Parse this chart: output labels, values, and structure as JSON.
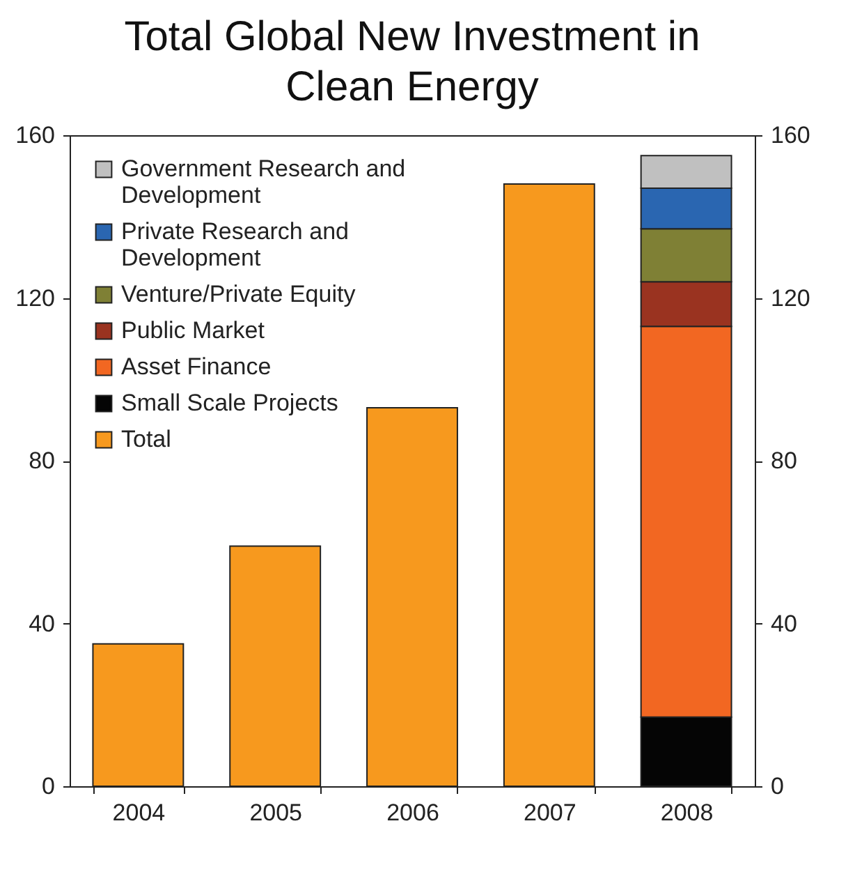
{
  "chart_data": {
    "type": "bar",
    "title": "Total Global New Investment in Clean Energy",
    "categories": [
      "2004",
      "2005",
      "2006",
      "2007",
      "2008"
    ],
    "stacked": true,
    "series": [
      {
        "name": "Total",
        "color": "#f7991e",
        "values": [
          35,
          59,
          93,
          148,
          null
        ]
      },
      {
        "name": "Small Scale Projects",
        "color": "#050505",
        "values": [
          null,
          null,
          null,
          null,
          17
        ]
      },
      {
        "name": "Asset Finance",
        "color": "#f26722",
        "values": [
          null,
          null,
          null,
          null,
          96
        ]
      },
      {
        "name": "Public Market",
        "color": "#9a3320",
        "values": [
          null,
          null,
          null,
          null,
          11
        ]
      },
      {
        "name": "Venture/Private Equity",
        "color": "#7f8035",
        "values": [
          null,
          null,
          null,
          null,
          13
        ]
      },
      {
        "name": "Private Research and Development",
        "color": "#2a66b1",
        "values": [
          null,
          null,
          null,
          null,
          10
        ]
      },
      {
        "name": "Government Research and Development",
        "color": "#c0c0c0",
        "values": [
          null,
          null,
          null,
          null,
          8
        ]
      }
    ],
    "ylim": [
      0,
      160
    ],
    "yticks": [
      0,
      40,
      80,
      120,
      160
    ],
    "y2lim": [
      0,
      160
    ],
    "y2ticks": [
      0,
      40,
      80,
      120,
      160
    ],
    "grid": false,
    "legend": "top left"
  }
}
